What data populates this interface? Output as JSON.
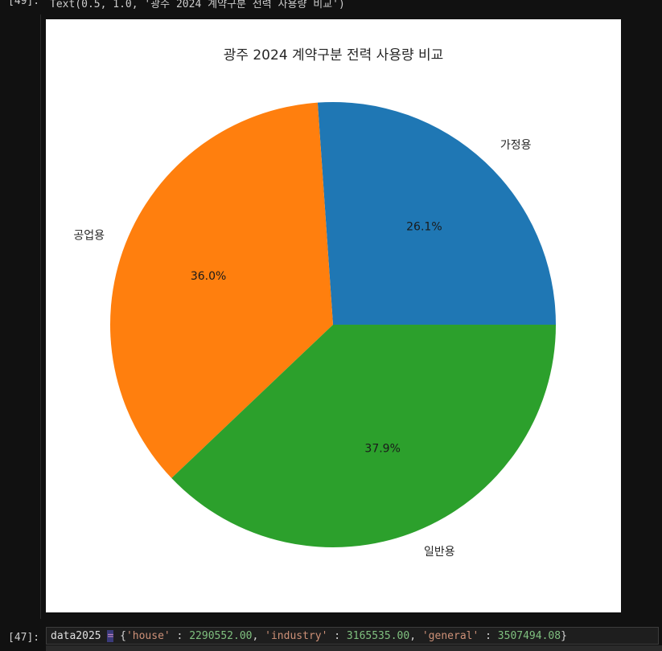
{
  "top_cell": {
    "prompt": "[49]:",
    "output_text": "Text(0.5, 1.0, '광주 2024 계약구분 전력 사용량 비교')"
  },
  "bottom_cell": {
    "prompt": "[47]:",
    "code": {
      "var": "data2025",
      "op": "=",
      "open": "{",
      "k1": "'house'",
      "sep1": " : ",
      "v1": "2290552.00",
      "c1": ", ",
      "k2": "'industry'",
      "sep2": " : ",
      "v2": "3165535.00",
      "c2": ", ",
      "k3": "'general'",
      "sep3": " : ",
      "v3": "3507494.08",
      "close": "}"
    }
  },
  "chart_data": {
    "type": "pie",
    "title": "광주 2024 계약구분 전력 사용량 비교",
    "labels": [
      "가정용",
      "공업용",
      "일반용"
    ],
    "values": [
      26.1,
      36.0,
      37.9
    ],
    "autopct_labels": [
      "26.1%",
      "36.0%",
      "37.9%"
    ],
    "colors": [
      "#1f77b4",
      "#ff7f0e",
      "#2ca02c"
    ],
    "start_angle": 0,
    "direction": "counterclockwise"
  }
}
